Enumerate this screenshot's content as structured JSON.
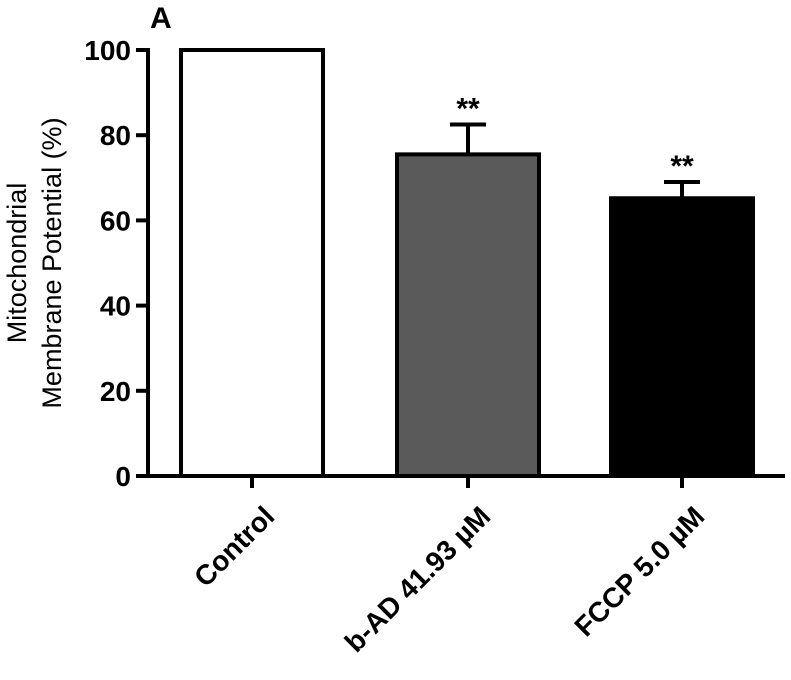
{
  "panel_label": "A",
  "chart_data": {
    "type": "bar",
    "title": "",
    "ylabel_lines": [
      "Mitochondrial",
      "Membrane Potential (%)"
    ],
    "xlabel": "",
    "categories": [
      "Control",
      "b-AD 41.93 µM",
      "FCCP 5.0 µM"
    ],
    "values": [
      100,
      75.5,
      65.2
    ],
    "errors": [
      0,
      7,
      3.8
    ],
    "annotations": [
      "",
      "**",
      "**"
    ],
    "bar_colors": [
      "#ffffff",
      "#5a5a5a",
      "#000000"
    ],
    "ylim": [
      0,
      100
    ],
    "yticks": [
      "0",
      "20",
      "40",
      "60",
      "80",
      "100"
    ],
    "grid": false,
    "legend": "none"
  }
}
